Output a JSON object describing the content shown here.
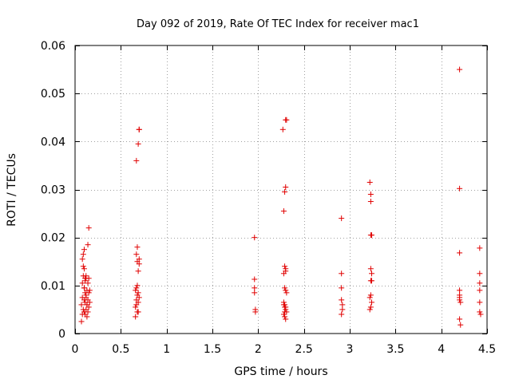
{
  "chart_data": {
    "type": "scatter",
    "title": "Day 092 of 2019, Rate Of TEC Index for receiver mac1",
    "xlabel": "GPS time / hours",
    "ylabel": "ROTI / TECUs",
    "xlim": [
      0,
      4.5
    ],
    "ylim": [
      0,
      0.06
    ],
    "xticks": [
      0,
      0.5,
      1,
      1.5,
      2,
      2.5,
      3,
      3.5,
      4,
      4.5
    ],
    "xtick_labels": [
      "0",
      "0.5",
      "1",
      "1.5",
      "2",
      "2.5",
      "3",
      "3.5",
      "4",
      "4.5"
    ],
    "yticks": [
      0,
      0.01,
      0.02,
      0.03,
      0.04,
      0.05,
      0.06
    ],
    "ytick_labels": [
      "0",
      "0.01",
      "0.02",
      "0.03",
      "0.04",
      "0.05",
      "0.06"
    ],
    "grid": true,
    "marker": "+",
    "marker_color": "#e00000",
    "series": [
      {
        "name": "ROTI",
        "x": [
          0.07,
          0.07,
          0.08,
          0.08,
          0.08,
          0.09,
          0.09,
          0.09,
          0.1,
          0.1,
          0.1,
          0.1,
          0.11,
          0.11,
          0.11,
          0.11,
          0.12,
          0.12,
          0.12,
          0.13,
          0.13,
          0.13,
          0.14,
          0.14,
          0.14,
          0.15,
          0.15,
          0.15,
          0.16,
          0.16,
          0.08,
          0.09,
          0.1,
          0.11,
          0.12,
          0.13,
          0.14,
          0.1,
          0.12,
          0.15,
          0.66,
          0.67,
          0.67,
          0.68,
          0.68,
          0.69,
          0.69,
          0.7,
          0.7,
          0.66,
          0.67,
          0.68,
          0.69,
          0.7,
          0.67,
          0.68,
          0.69,
          0.7,
          0.66,
          0.68,
          0.69,
          0.67,
          0.7,
          1.96,
          1.96,
          1.96,
          1.96,
          1.97,
          1.97,
          2.27,
          2.28,
          2.29,
          2.3,
          2.3,
          2.31,
          2.29,
          2.3,
          2.28,
          2.29,
          2.3,
          2.31,
          2.28,
          2.29,
          2.3,
          2.31,
          2.28,
          2.29,
          2.3,
          2.28,
          2.29,
          2.3,
          2.29,
          2.3,
          2.91,
          2.91,
          2.91,
          2.91,
          2.92,
          2.92,
          2.91,
          3.22,
          3.23,
          3.23,
          3.23,
          3.24,
          3.23,
          3.24,
          3.23,
          3.24,
          3.23,
          3.22,
          3.24,
          3.23,
          3.22,
          4.2,
          4.2,
          4.2,
          4.2,
          4.2,
          4.2,
          4.2,
          4.21,
          4.2,
          4.21,
          4.42,
          4.42,
          4.42,
          4.42,
          4.42,
          4.42,
          4.43
        ],
        "y": [
          0.0025,
          0.006,
          0.004,
          0.0075,
          0.0105,
          0.005,
          0.012,
          0.0165,
          0.007,
          0.0095,
          0.0135,
          0.0175,
          0.004,
          0.0065,
          0.0085,
          0.011,
          0.005,
          0.0075,
          0.0115,
          0.0035,
          0.006,
          0.009,
          0.0185,
          0.0045,
          0.007,
          0.0115,
          0.022,
          0.0055,
          0.0065,
          0.009,
          0.0155,
          0.014,
          0.0095,
          0.0115,
          0.008,
          0.006,
          0.0105,
          0.0045,
          0.012,
          0.0085,
          0.0035,
          0.006,
          0.0095,
          0.008,
          0.015,
          0.0045,
          0.013,
          0.0075,
          0.0155,
          0.0055,
          0.0165,
          0.018,
          0.0395,
          0.0425,
          0.036,
          0.01,
          0.0065,
          0.0145,
          0.009,
          0.0045,
          0.0085,
          0.007,
          0.0425,
          0.02,
          0.0113,
          0.0095,
          0.0085,
          0.005,
          0.0045,
          0.0425,
          0.0255,
          0.0295,
          0.0305,
          0.0445,
          0.0445,
          0.014,
          0.0135,
          0.0125,
          0.0095,
          0.009,
          0.0085,
          0.006,
          0.0055,
          0.005,
          0.0045,
          0.004,
          0.0035,
          0.003,
          0.0065,
          0.0045,
          0.0055,
          0.006,
          0.013,
          0.024,
          0.0125,
          0.0095,
          0.007,
          0.006,
          0.005,
          0.004,
          0.0315,
          0.029,
          0.0275,
          0.0205,
          0.0205,
          0.0135,
          0.0125,
          0.011,
          0.011,
          0.008,
          0.0075,
          0.0065,
          0.0055,
          0.005,
          0.055,
          0.0302,
          0.0168,
          0.009,
          0.008,
          0.0075,
          0.007,
          0.0065,
          0.003,
          0.0018,
          0.0178,
          0.0125,
          0.0105,
          0.009,
          0.0065,
          0.0045,
          0.004
        ]
      }
    ]
  }
}
